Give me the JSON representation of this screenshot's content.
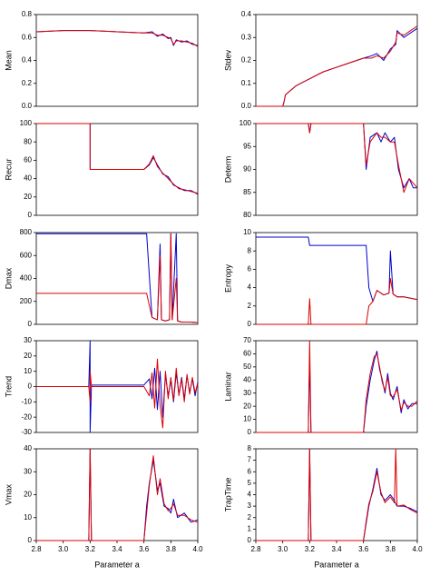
{
  "chart_data": [
    {
      "type": "line",
      "y_label": "Mean",
      "xlim": [
        2.8,
        4.0
      ],
      "ylim": [
        0,
        0.8
      ],
      "yticks": [
        {
          "value": 0,
          "label": "0.0"
        },
        0.2,
        0.4,
        0.6,
        0.8
      ],
      "x": [
        2.8,
        3.0,
        3.2,
        3.4,
        3.6,
        3.66,
        3.7,
        3.74,
        3.78,
        3.8,
        3.82,
        3.84,
        3.88,
        3.92,
        3.96,
        4.0
      ],
      "series": [
        {
          "color": "#0000cc",
          "values": [
            0.65,
            0.66,
            0.66,
            0.65,
            0.64,
            0.65,
            0.61,
            0.63,
            0.59,
            0.6,
            0.53,
            0.58,
            0.56,
            0.57,
            0.54,
            0.53
          ]
        },
        {
          "color": "#dd0000",
          "values": [
            0.65,
            0.66,
            0.66,
            0.65,
            0.64,
            0.64,
            0.62,
            0.62,
            0.6,
            0.59,
            0.54,
            0.57,
            0.57,
            0.56,
            0.55,
            0.52
          ]
        }
      ]
    },
    {
      "type": "line",
      "y_label": "Stdev",
      "xlim": [
        2.8,
        4.0
      ],
      "ylim": [
        0,
        0.4
      ],
      "yticks": [
        {
          "value": 0,
          "label": "0.0"
        },
        0.1,
        0.2,
        0.3,
        0.4
      ],
      "x": [
        2.8,
        3.0,
        3.01,
        3.02,
        3.1,
        3.2,
        3.3,
        3.4,
        3.5,
        3.6,
        3.66,
        3.7,
        3.75,
        3.8,
        3.84,
        3.85,
        3.9,
        3.95,
        4.0
      ],
      "series": [
        {
          "color": "#0000cc",
          "values": [
            0,
            0,
            0.02,
            0.05,
            0.09,
            0.12,
            0.15,
            0.17,
            0.19,
            0.21,
            0.22,
            0.23,
            0.2,
            0.25,
            0.27,
            0.33,
            0.3,
            0.32,
            0.34
          ]
        },
        {
          "color": "#dd0000",
          "values": [
            0,
            0,
            0.02,
            0.05,
            0.09,
            0.12,
            0.15,
            0.17,
            0.19,
            0.21,
            0.21,
            0.22,
            0.21,
            0.24,
            0.28,
            0.32,
            0.31,
            0.33,
            0.35
          ]
        }
      ]
    },
    {
      "type": "line",
      "y_label": "Recur",
      "xlim": [
        2.8,
        4.0
      ],
      "ylim": [
        0,
        100
      ],
      "yticks": [
        0,
        20,
        40,
        60,
        80,
        100
      ],
      "x": [
        2.8,
        3.2,
        3.2,
        3.6,
        3.64,
        3.67,
        3.7,
        3.74,
        3.78,
        3.82,
        3.86,
        3.9,
        3.95,
        4.0
      ],
      "series": [
        {
          "color": "#0000cc",
          "values": [
            100,
            100,
            50,
            50,
            55,
            63,
            55,
            45,
            42,
            33,
            30,
            27,
            27,
            23
          ]
        },
        {
          "color": "#dd0000",
          "values": [
            100,
            100,
            50,
            50,
            56,
            65,
            53,
            46,
            40,
            34,
            29,
            28,
            26,
            24
          ]
        }
      ]
    },
    {
      "type": "line",
      "y_label": "Determ",
      "xlim": [
        2.8,
        4.0
      ],
      "ylim": [
        80,
        100
      ],
      "yticks": [
        80,
        85,
        90,
        95,
        100
      ],
      "x": [
        2.8,
        3.19,
        3.2,
        3.21,
        3.6,
        3.62,
        3.65,
        3.7,
        3.73,
        3.76,
        3.8,
        3.83,
        3.86,
        3.9,
        3.94,
        3.97,
        4.0
      ],
      "series": [
        {
          "color": "#0000cc",
          "values": [
            100,
            100,
            98,
            100,
            100,
            90,
            97,
            98,
            96,
            98,
            96,
            97,
            90,
            86,
            88,
            86,
            86
          ]
        },
        {
          "color": "#dd0000",
          "values": [
            100,
            100,
            98,
            100,
            100,
            91,
            96,
            98,
            97,
            97,
            96,
            96,
            91,
            85,
            88,
            87,
            86
          ]
        }
      ]
    },
    {
      "type": "line",
      "y_label": "Dmax",
      "xlim": [
        2.8,
        4.0
      ],
      "ylim": [
        0,
        800
      ],
      "yticks": [
        0,
        200,
        400,
        600,
        800
      ],
      "x": [
        2.8,
        3.62,
        3.66,
        3.7,
        3.72,
        3.73,
        3.76,
        3.79,
        3.8,
        3.81,
        3.84,
        3.85,
        3.88,
        3.95,
        4.0
      ],
      "series": [
        {
          "color": "#0000cc",
          "values": [
            790,
            790,
            60,
            40,
            700,
            40,
            30,
            40,
            790,
            40,
            790,
            30,
            20,
            20,
            15
          ]
        },
        {
          "color": "#dd0000",
          "values": [
            270,
            270,
            60,
            40,
            600,
            40,
            30,
            40,
            790,
            40,
            400,
            30,
            20,
            20,
            15
          ]
        }
      ]
    },
    {
      "type": "line",
      "y_label": "Entropy",
      "xlim": [
        2.8,
        4.0
      ],
      "ylim": [
        0,
        10
      ],
      "yticks": [
        0,
        2,
        4,
        6,
        8,
        10
      ],
      "x": [
        2.8,
        3.19,
        3.2,
        3.21,
        3.6,
        3.62,
        3.64,
        3.67,
        3.7,
        3.75,
        3.79,
        3.8,
        3.82,
        3.85,
        3.9,
        4.0
      ],
      "series": [
        {
          "color": "#0000cc",
          "values": [
            9.5,
            9.5,
            8.6,
            8.6,
            8.6,
            8.6,
            4,
            2.5,
            3.7,
            3.2,
            3.4,
            8,
            3.3,
            3,
            3,
            2.7
          ]
        },
        {
          "color": "#dd0000",
          "values": [
            0,
            0,
            2.8,
            0,
            0,
            0,
            2,
            2.5,
            3.7,
            3.2,
            3.4,
            5,
            3.3,
            3,
            3,
            2.7
          ]
        }
      ]
    },
    {
      "type": "line",
      "y_label": "Trend",
      "xlim": [
        2.8,
        4.0
      ],
      "ylim": [
        -30,
        30
      ],
      "yticks": [
        -30,
        -20,
        -10,
        0,
        10,
        20,
        30
      ],
      "x": [
        2.8,
        3.19,
        3.2,
        3.2,
        3.21,
        3.6,
        3.64,
        3.66,
        3.68,
        3.7,
        3.72,
        3.74,
        3.76,
        3.78,
        3.8,
        3.82,
        3.84,
        3.86,
        3.88,
        3.9,
        3.92,
        3.94,
        3.96,
        3.98,
        4.0
      ],
      "series": [
        {
          "color": "#0000cc",
          "values": [
            0,
            0,
            30,
            -30,
            1,
            1,
            5,
            -8,
            12,
            -15,
            10,
            -20,
            8,
            -6,
            4,
            -10,
            9,
            -5,
            6,
            -8,
            7,
            -4,
            5,
            -6,
            3
          ]
        },
        {
          "color": "#dd0000",
          "values": [
            0,
            0,
            -10,
            10,
            0,
            0,
            -6,
            9,
            -14,
            18,
            -12,
            -27,
            10,
            -8,
            6,
            -9,
            12,
            -6,
            5,
            -10,
            8,
            -5,
            6,
            -4,
            2
          ]
        }
      ]
    },
    {
      "type": "line",
      "y_label": "Laminar",
      "xlim": [
        2.8,
        4.0
      ],
      "ylim": [
        0,
        70
      ],
      "yticks": [
        0,
        10,
        20,
        30,
        40,
        50,
        60,
        70
      ],
      "x": [
        2.8,
        3.19,
        3.2,
        3.21,
        3.6,
        3.62,
        3.65,
        3.68,
        3.7,
        3.72,
        3.74,
        3.76,
        3.78,
        3.8,
        3.82,
        3.85,
        3.88,
        3.9,
        3.93,
        3.96,
        4.0
      ],
      "series": [
        {
          "color": "#0000cc",
          "values": [
            0,
            0,
            55,
            0,
            0,
            20,
            40,
            55,
            62,
            48,
            40,
            30,
            45,
            30,
            25,
            35,
            15,
            25,
            18,
            22,
            22
          ]
        },
        {
          "color": "#dd0000",
          "values": [
            0,
            0,
            70,
            0,
            0,
            25,
            45,
            58,
            60,
            50,
            38,
            32,
            42,
            28,
            27,
            33,
            17,
            23,
            20,
            20,
            24
          ]
        }
      ]
    },
    {
      "type": "line",
      "y_label": "Vmax",
      "xlim": [
        2.8,
        4.0
      ],
      "ylim": [
        0,
        40
      ],
      "yticks": [
        0,
        10,
        20,
        30,
        40
      ],
      "xticks": [
        2.8,
        {
          "value": 3,
          "label": "3.0"
        },
        3.2,
        3.4,
        3.6,
        3.8,
        {
          "value": 4,
          "label": "4.0"
        }
      ],
      "x_label": "Parameter a",
      "x": [
        2.8,
        3.19,
        3.2,
        3.21,
        3.6,
        3.62,
        3.64,
        3.67,
        3.7,
        3.72,
        3.75,
        3.78,
        3.8,
        3.82,
        3.85,
        3.9,
        3.95,
        4.0
      ],
      "series": [
        {
          "color": "#0000cc",
          "values": [
            0,
            0,
            40,
            0,
            0,
            15,
            25,
            35,
            22,
            25,
            15,
            14,
            12,
            18,
            10,
            12,
            8,
            9
          ]
        },
        {
          "color": "#dd0000",
          "values": [
            0,
            0,
            40,
            0,
            0,
            12,
            24,
            37,
            20,
            27,
            16,
            13,
            14,
            16,
            11,
            11,
            9,
            8
          ]
        }
      ]
    },
    {
      "type": "line",
      "y_label": "TrapTime",
      "xlim": [
        2.8,
        4.0
      ],
      "ylim": [
        0,
        8
      ],
      "yticks": [
        0,
        1,
        2,
        3,
        4,
        5,
        6,
        7,
        8
      ],
      "xticks": [
        2.8,
        {
          "value": 3,
          "label": "3.0"
        },
        3.2,
        3.4,
        3.6,
        3.8,
        {
          "value": 4,
          "label": "4.0"
        }
      ],
      "x_label": "Parameter a",
      "x": [
        2.8,
        3.19,
        3.2,
        3.21,
        3.6,
        3.62,
        3.64,
        3.67,
        3.7,
        3.73,
        3.76,
        3.8,
        3.83,
        3.84,
        3.85,
        3.9,
        3.95,
        4.0
      ],
      "series": [
        {
          "color": "#0000cc",
          "values": [
            0,
            0,
            8,
            0,
            0,
            1.5,
            3,
            4.5,
            6.3,
            4,
            3.5,
            4,
            3.5,
            3.2,
            3,
            3,
            2.8,
            2.5
          ]
        },
        {
          "color": "#dd0000",
          "values": [
            0,
            0,
            8,
            0,
            0,
            1.7,
            3.2,
            4.3,
            6,
            4.2,
            3.3,
            3.8,
            3.3,
            8,
            3,
            3.1,
            2.7,
            2.4
          ]
        }
      ]
    }
  ]
}
